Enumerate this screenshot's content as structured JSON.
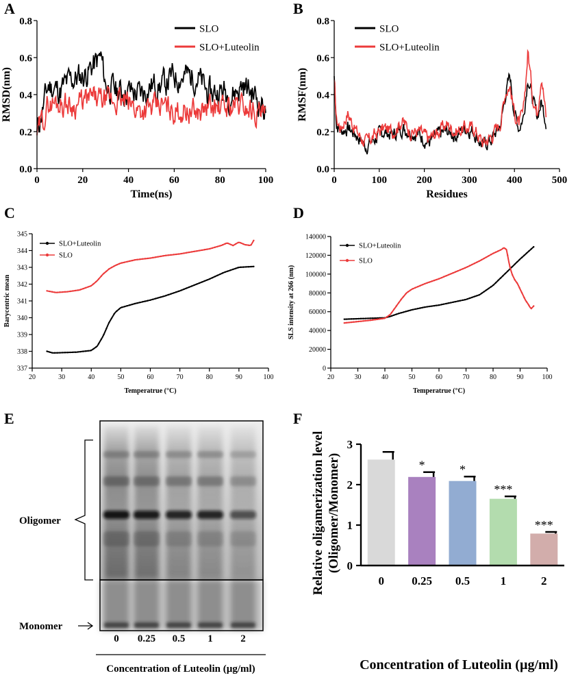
{
  "panel_labels": {
    "a": "A",
    "b": "B",
    "c": "C",
    "d": "D",
    "e": "E",
    "f": "F"
  },
  "colors": {
    "black": "#000000",
    "red": "#ec3a3a"
  },
  "gel": {
    "lanes": [
      "0",
      "0.25",
      "0.5",
      "1",
      "2"
    ],
    "xlabel": "Concentration of Luteolin (µg/ml)",
    "oligomer_label": "Oligomer",
    "monomer_label": "Monomer"
  },
  "chart_data": [
    {
      "panel": "A",
      "type": "line",
      "xlabel": "Time(ns)",
      "ylabel": "RMSD(nm)",
      "xlim": [
        0,
        100
      ],
      "ylim": [
        0,
        0.8
      ],
      "xticks": [
        0,
        20,
        40,
        60,
        80,
        100
      ],
      "yticks": [
        0.0,
        0.2,
        0.4,
        0.6,
        0.8
      ],
      "xtick_labels": [
        "0",
        "20",
        "40",
        "60",
        "80",
        "100"
      ],
      "ytick_labels": [
        "0.0",
        "0.2",
        "0.4",
        "0.6",
        "0.8"
      ],
      "legend": [
        "SLO",
        "SLO+Luteolin"
      ],
      "series": [
        {
          "name": "SLO",
          "color": "#000000",
          "x": [
            0,
            5,
            10,
            15,
            20,
            25,
            28,
            30,
            35,
            40,
            45,
            50,
            55,
            60,
            65,
            70,
            75,
            80,
            85,
            90,
            95,
            100
          ],
          "y": [
            0.2,
            0.45,
            0.42,
            0.48,
            0.5,
            0.56,
            0.6,
            0.45,
            0.42,
            0.42,
            0.4,
            0.45,
            0.45,
            0.5,
            0.5,
            0.5,
            0.4,
            0.42,
            0.4,
            0.45,
            0.4,
            0.32
          ],
          "noise": 0.08,
          "seed": 11
        },
        {
          "name": "SLO+Luteolin",
          "color": "#ec3a3a",
          "x": [
            0,
            5,
            10,
            15,
            20,
            25,
            30,
            35,
            40,
            45,
            50,
            55,
            60,
            65,
            70,
            75,
            80,
            85,
            90,
            95,
            100
          ],
          "y": [
            0.18,
            0.35,
            0.36,
            0.34,
            0.36,
            0.38,
            0.36,
            0.37,
            0.35,
            0.32,
            0.32,
            0.34,
            0.31,
            0.32,
            0.3,
            0.33,
            0.32,
            0.34,
            0.34,
            0.32,
            0.28
          ],
          "noise": 0.07,
          "seed": 29
        }
      ]
    },
    {
      "panel": "B",
      "type": "line",
      "xlabel": "Residues",
      "ylabel": "RMSF(nm)",
      "xlim": [
        0,
        500
      ],
      "ylim": [
        0,
        0.8
      ],
      "xticks": [
        0,
        100,
        200,
        300,
        400,
        500
      ],
      "yticks": [
        0.0,
        0.2,
        0.4,
        0.6,
        0.8
      ],
      "xtick_labels": [
        "0",
        "100",
        "200",
        "300",
        "400",
        "500"
      ],
      "ytick_labels": [
        "0.0",
        "0.2",
        "0.4",
        "0.6",
        "0.8"
      ],
      "legend": [
        "SLO",
        "SLO+Luteolin"
      ],
      "series": [
        {
          "name": "SLO",
          "color": "#000000",
          "x": [
            0,
            5,
            15,
            30,
            50,
            70,
            90,
            110,
            130,
            150,
            170,
            190,
            210,
            230,
            250,
            270,
            290,
            310,
            330,
            350,
            370,
            380,
            390,
            400,
            410,
            420,
            430,
            440,
            450,
            460,
            470
          ],
          "y": [
            0.5,
            0.24,
            0.2,
            0.22,
            0.18,
            0.12,
            0.16,
            0.2,
            0.18,
            0.22,
            0.2,
            0.18,
            0.14,
            0.18,
            0.2,
            0.18,
            0.22,
            0.2,
            0.12,
            0.16,
            0.24,
            0.4,
            0.5,
            0.3,
            0.22,
            0.28,
            0.5,
            0.38,
            0.28,
            0.36,
            0.26
          ],
          "noise": 0.04,
          "seed": 7
        },
        {
          "name": "SLO+Luteolin",
          "color": "#ec3a3a",
          "x": [
            0,
            5,
            15,
            30,
            50,
            70,
            90,
            110,
            130,
            150,
            170,
            190,
            210,
            230,
            250,
            270,
            290,
            310,
            330,
            350,
            370,
            380,
            390,
            400,
            410,
            420,
            430,
            440,
            450,
            460,
            470
          ],
          "y": [
            0.48,
            0.26,
            0.22,
            0.3,
            0.2,
            0.14,
            0.18,
            0.22,
            0.2,
            0.26,
            0.2,
            0.2,
            0.16,
            0.2,
            0.24,
            0.2,
            0.22,
            0.22,
            0.14,
            0.18,
            0.26,
            0.42,
            0.45,
            0.3,
            0.24,
            0.3,
            0.64,
            0.4,
            0.3,
            0.52,
            0.28
          ],
          "noise": 0.04,
          "seed": 17
        }
      ]
    },
    {
      "panel": "C",
      "type": "line",
      "xlabel": "Temperatrue (°C)",
      "ylabel": "Barycentric mean",
      "xlim": [
        20,
        100
      ],
      "ylim": [
        337,
        345
      ],
      "xticks": [
        20,
        30,
        40,
        50,
        60,
        70,
        80,
        90,
        100
      ],
      "yticks": [
        337,
        338,
        339,
        340,
        341,
        342,
        343,
        344,
        345
      ],
      "xtick_labels": [
        "20",
        "30",
        "40",
        "50",
        "60",
        "70",
        "80",
        "90",
        "100"
      ],
      "ytick_labels": [
        "337",
        "338",
        "339",
        "340",
        "341",
        "342",
        "343",
        "344",
        "345"
      ],
      "legend": [
        "SLO+Luteolin",
        "SLO"
      ],
      "series": [
        {
          "name": "SLO+Luteolin",
          "color": "#000000",
          "x": [
            25,
            27,
            30,
            35,
            40,
            42,
            44,
            46,
            48,
            50,
            55,
            60,
            65,
            70,
            75,
            80,
            85,
            90,
            95
          ],
          "y": [
            338.0,
            337.9,
            337.92,
            337.95,
            338.05,
            338.3,
            338.9,
            339.7,
            340.3,
            340.6,
            340.85,
            341.05,
            341.3,
            341.6,
            341.95,
            342.3,
            342.7,
            343.0,
            343.05
          ]
        },
        {
          "name": "SLO",
          "color": "#ec3a3a",
          "x": [
            25,
            28,
            32,
            36,
            40,
            42,
            44,
            46,
            48,
            50,
            55,
            60,
            65,
            70,
            75,
            80,
            84,
            86,
            88,
            90,
            92,
            94,
            95
          ],
          "y": [
            341.6,
            341.5,
            341.55,
            341.65,
            341.9,
            342.2,
            342.6,
            342.9,
            343.1,
            343.25,
            343.45,
            343.55,
            343.7,
            343.8,
            343.95,
            344.1,
            344.3,
            344.45,
            344.3,
            344.5,
            344.35,
            344.3,
            344.6
          ]
        }
      ]
    },
    {
      "panel": "D",
      "type": "line",
      "xlabel": "Temperatrue (°C)",
      "ylabel": "SLS intensity at 266 (nm)",
      "xlim": [
        20,
        100
      ],
      "ylim": [
        0,
        140000
      ],
      "xticks": [
        20,
        30,
        40,
        50,
        60,
        70,
        80,
        90,
        100
      ],
      "yticks": [
        0,
        20000,
        40000,
        60000,
        80000,
        100000,
        120000,
        140000
      ],
      "xtick_labels": [
        "20",
        "30",
        "40",
        "50",
        "60",
        "70",
        "80",
        "90",
        "100"
      ],
      "ytick_labels": [
        "0",
        "20000",
        "40000",
        "60000",
        "80000",
        "100000",
        "120000",
        "140000"
      ],
      "legend": [
        "SLO+Luteolin",
        "SLO"
      ],
      "series": [
        {
          "name": "SLO+Luteolin",
          "color": "#000000",
          "x": [
            25,
            30,
            35,
            40,
            42,
            45,
            50,
            55,
            60,
            65,
            70,
            75,
            80,
            85,
            90,
            95
          ],
          "y": [
            52000,
            52500,
            53000,
            53500,
            55000,
            58000,
            62000,
            65000,
            67000,
            70000,
            73000,
            78000,
            88000,
            102000,
            116000,
            129000
          ]
        },
        {
          "name": "SLO",
          "color": "#ec3a3a",
          "x": [
            25,
            30,
            35,
            40,
            42,
            44,
            46,
            48,
            50,
            55,
            60,
            65,
            70,
            75,
            80,
            83,
            84,
            85,
            86,
            87,
            88,
            89,
            90,
            91,
            92,
            93,
            94,
            95
          ],
          "y": [
            48000,
            49500,
            51000,
            53000,
            57000,
            65000,
            73000,
            80000,
            84000,
            90000,
            95000,
            101000,
            107000,
            114000,
            122000,
            126000,
            128000,
            126000,
            110000,
            100000,
            94000,
            90000,
            84000,
            78000,
            72000,
            68000,
            63000,
            66000
          ]
        }
      ]
    },
    {
      "panel": "F",
      "type": "bar",
      "xlabel": "Concentration of Luteolin (µg/ml)",
      "ylabel_line1": "Relative oligamerization level",
      "ylabel_line2": "(Oligomer/Monomer)",
      "categories": [
        "0",
        "0.25",
        "0.5",
        "1",
        "2"
      ],
      "values": [
        2.62,
        2.19,
        2.09,
        1.65,
        0.79
      ],
      "errors": [
        0.19,
        0.12,
        0.11,
        0.06,
        0.04
      ],
      "significance": [
        "",
        "*",
        "*",
        "***",
        "***"
      ],
      "colors": [
        "#d9d9d9",
        "#a981bf",
        "#92acd2",
        "#b3dcae",
        "#d2adab"
      ],
      "ylim": [
        0,
        3
      ],
      "yticks": [
        0,
        1,
        2,
        3
      ],
      "ytick_labels": [
        "0",
        "1",
        "2",
        "3"
      ]
    }
  ]
}
